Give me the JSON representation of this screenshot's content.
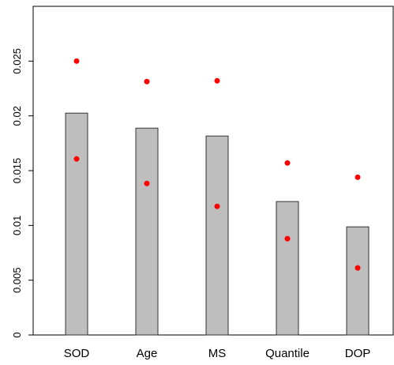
{
  "chart_data": {
    "type": "bar",
    "categories": [
      "SOD",
      "Age",
      "MS",
      "Quantile",
      "DOP"
    ],
    "values": [
      0.02025,
      0.01888,
      0.01816,
      0.01218,
      0.00987
    ],
    "color": "#bebebe",
    "points": [
      {
        "color": "#ff0000",
        "values": [
          0.025,
          0.02313,
          0.0232,
          0.0157,
          0.0144
        ]
      },
      {
        "color": "#ff0000",
        "values": [
          0.01607,
          0.01383,
          0.01174,
          0.00879,
          0.00612
        ]
      }
    ],
    "ylim": [
      0,
      0.03
    ],
    "yticks": [
      0,
      0.005,
      0.01,
      0.015,
      0.02,
      0.025
    ]
  }
}
